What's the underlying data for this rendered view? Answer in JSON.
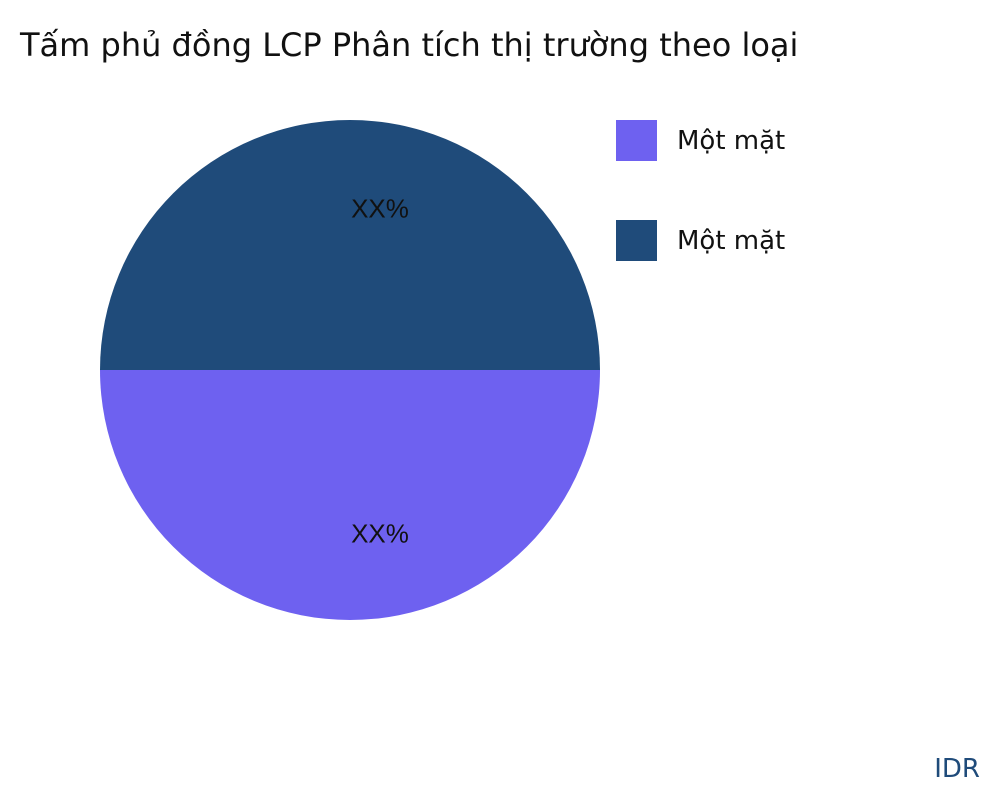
{
  "chart_data": {
    "type": "pie",
    "title": "Tấm phủ đồng LCP Phân tích thị trường theo loại",
    "slices": [
      {
        "name": "Một mặt",
        "value": 50,
        "label": "XX%",
        "color": "#6E61F0"
      },
      {
        "name": "Một mặt",
        "value": 50,
        "label": "XX%",
        "color": "#1F4B7A"
      }
    ],
    "legend_position": "top-right"
  },
  "watermark": "IDR"
}
